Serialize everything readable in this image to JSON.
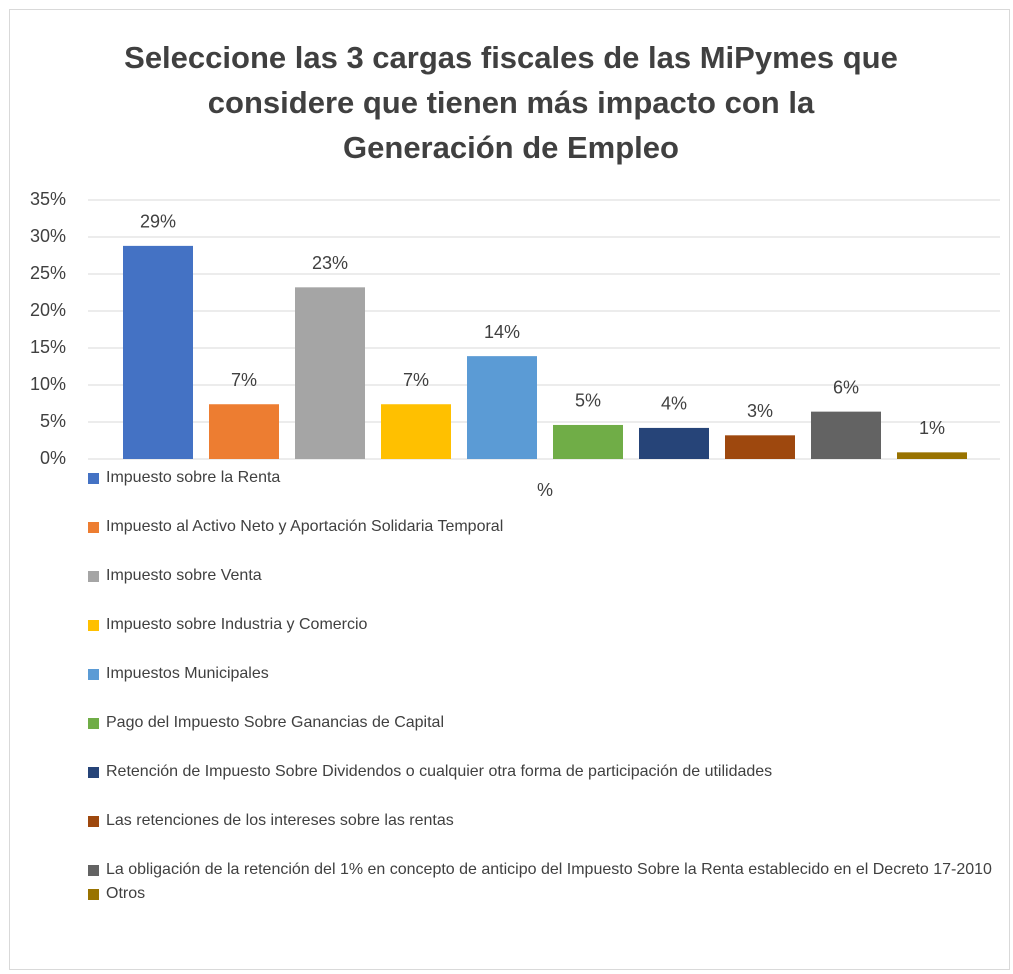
{
  "chart_data": {
    "type": "bar",
    "title": [
      "Seleccione las 3 cargas fiscales de las MiPymes que",
      "considere que tienen más impacto con la",
      "Generación de Empleo"
    ],
    "categories": [
      "%"
    ],
    "series": [
      {
        "name": "Impuesto sobre la Renta",
        "color": "#4472c4",
        "values": [
          28.8
        ],
        "value_labels": [
          "29%"
        ]
      },
      {
        "name": "Impuesto al Activo Neto y Aportación Solidaria Temporal",
        "color": "#ed7d31",
        "values": [
          7.4
        ],
        "value_labels": [
          "7%"
        ]
      },
      {
        "name": "Impuesto sobre Venta",
        "color": "#a5a5a5",
        "values": [
          23.2
        ],
        "value_labels": [
          "23%"
        ]
      },
      {
        "name": "Impuesto sobre Industria y Comercio",
        "color": "#ffc000",
        "values": [
          7.4
        ],
        "value_labels": [
          "7%"
        ]
      },
      {
        "name": "Impuestos Municipales",
        "color": "#5b9bd5",
        "values": [
          13.9
        ],
        "value_labels": [
          "14%"
        ]
      },
      {
        "name": "Pago del Impuesto Sobre Ganancias de Capital",
        "color": "#70ad47",
        "values": [
          4.6
        ],
        "value_labels": [
          "5%"
        ]
      },
      {
        "name": "Retención de Impuesto Sobre Dividendos o cualquier otra forma de participación de utilidades",
        "color": "#264478",
        "values": [
          4.2
        ],
        "value_labels": [
          "4%"
        ]
      },
      {
        "name": "Las retenciones de los intereses sobre las rentas",
        "color": "#9e480e",
        "values": [
          3.2
        ],
        "value_labels": [
          "3%"
        ]
      },
      {
        "name": "La obligación de la retención del 1% en concepto de anticipo del Impuesto Sobre la Renta establecido en el Decreto 17-2010",
        "color": "#636363",
        "values": [
          6.4
        ],
        "value_labels": [
          "6%"
        ]
      },
      {
        "name": "Otros",
        "color": "#997300",
        "values": [
          0.9
        ],
        "value_labels": [
          "1%"
        ]
      }
    ],
    "ylim": [
      0,
      35
    ],
    "yticks": [
      {
        "value": 0,
        "label": "0%"
      },
      {
        "value": 5,
        "label": "5%"
      },
      {
        "value": 10,
        "label": "10%"
      },
      {
        "value": 15,
        "label": "15%"
      },
      {
        "value": 20,
        "label": "20%"
      },
      {
        "value": 25,
        "label": "25%"
      },
      {
        "value": 30,
        "label": "30%"
      },
      {
        "value": 35,
        "label": "35%"
      }
    ],
    "grid": true,
    "legend": "bottom"
  }
}
